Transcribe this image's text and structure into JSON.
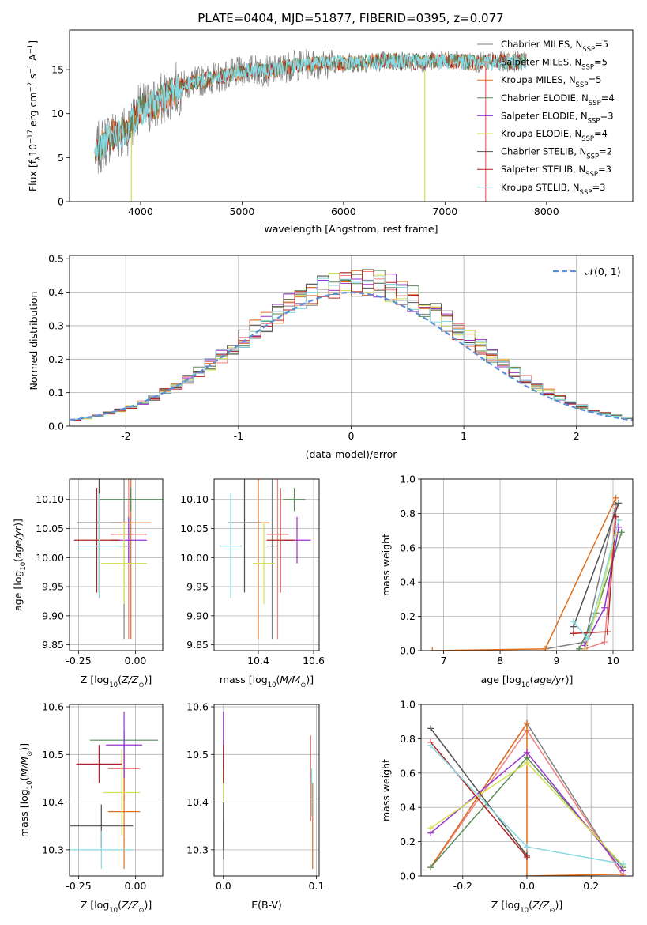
{
  "figure_title": "PLATE=0404, MJD=51877, FIBERID=0395, z=0.077",
  "colors": {
    "Chabrier MILES": "#808080",
    "Salpeter MILES": "#f08080",
    "Kroupa MILES": "#e07020",
    "Chabrier ELODIE": "#5a8a5a",
    "Salpeter ELODIE": "#9932cc",
    "Kroupa ELODIE": "#d4e157",
    "Chabrier STELIB": "#505050",
    "Salpeter STELIB": "#b22222",
    "Kroupa STELIB": "#87d8e0",
    "gaussian": "#5b8fd6"
  },
  "chart_data": [
    {
      "id": "spectrum",
      "type": "line",
      "title": "PLATE=0404, MJD=51877, FIBERID=0395, z=0.077",
      "xlabel": "wavelength [Angstrom, rest frame]",
      "ylabel": "Flux [f_λ 10^-17 erg cm^-2 s^-1 A^-1]",
      "xlim": [
        3300,
        8850
      ],
      "ylim": [
        0,
        19.5
      ],
      "xticks": [
        4000,
        5000,
        6000,
        7000,
        8000
      ],
      "yticks": [
        0,
        5,
        10,
        15
      ],
      "legend_placement": "right",
      "legend": [
        {
          "name": "Chabrier MILES",
          "nssp": 5
        },
        {
          "name": "Salpeter MILES",
          "nssp": 5
        },
        {
          "name": "Kroupa MILES",
          "nssp": 5
        },
        {
          "name": "Chabrier ELODIE",
          "nssp": 4
        },
        {
          "name": "Salpeter ELODIE",
          "nssp": 3
        },
        {
          "name": "Kroupa ELODIE",
          "nssp": 4
        },
        {
          "name": "Chabrier STELIB",
          "nssp": 2
        },
        {
          "name": "Salpeter STELIB",
          "nssp": 3
        },
        {
          "name": "Kroupa STELIB",
          "nssp": 3
        }
      ],
      "continuum": {
        "x": [
          3550,
          3700,
          3850,
          4000,
          4150,
          4300,
          4500,
          4700,
          4900,
          5100,
          5300,
          5500,
          5800,
          6100,
          6400,
          6700,
          7000,
          7300,
          7600,
          7800,
          8200,
          8600
        ],
        "y": [
          5.5,
          7.5,
          8.0,
          10.5,
          11.0,
          12.5,
          13.5,
          14.0,
          14.5,
          15.0,
          14.8,
          15.5,
          15.7,
          15.8,
          16.0,
          15.9,
          16.0,
          15.8,
          15.9,
          16.0,
          16.2,
          16.3
        ]
      }
    },
    {
      "id": "residuals",
      "type": "histogram",
      "xlabel": "(data-model)/error",
      "ylabel": "Normed distribution",
      "xlim": [
        -2.5,
        2.5
      ],
      "ylim": [
        0,
        0.51
      ],
      "xticks": [
        -2,
        -1,
        0,
        1,
        2
      ],
      "yticks": [
        0.0,
        0.1,
        0.2,
        0.3,
        0.4,
        0.5
      ],
      "grid": true,
      "legend": [
        "𝒩(0, 1)"
      ],
      "legend_placement": "top-right",
      "bin_width": 0.1,
      "reference_curve": "standard normal pdf"
    },
    {
      "id": "age-vs-Z",
      "type": "errorbar",
      "xlabel": "Z [log10(Z/Z⊙)]",
      "ylabel": "age [log10(age/yr)]",
      "xlim": [
        -0.29,
        0.12
      ],
      "ylim": [
        9.84,
        10.135
      ],
      "xticks": [
        -0.25,
        0.0
      ],
      "yticks": [
        9.85,
        9.9,
        9.95,
        10.0,
        10.05,
        10.1
      ],
      "grid": true,
      "points": [
        {
          "series": "Chabrier MILES",
          "x": -0.05,
          "y": 10.02,
          "xerr": 0.03,
          "yerr": 0.16
        },
        {
          "series": "Salpeter MILES",
          "x": -0.03,
          "y": 10.04,
          "xerr": 0.08,
          "yerr": 0.18
        },
        {
          "series": "Kroupa MILES",
          "x": -0.02,
          "y": 10.06,
          "xerr": 0.09,
          "yerr": 0.2
        },
        {
          "series": "Chabrier ELODIE",
          "x": -0.02,
          "y": 10.1,
          "xerr": 0.14,
          "yerr": 0.02
        },
        {
          "series": "Salpeter ELODIE",
          "x": -0.03,
          "y": 10.03,
          "xerr": 0.08,
          "yerr": 0.04
        },
        {
          "series": "Kroupa ELODIE",
          "x": -0.05,
          "y": 9.99,
          "xerr": 0.1,
          "yerr": 0.07
        },
        {
          "series": "Chabrier STELIB",
          "x": -0.16,
          "y": 10.06,
          "xerr": 0.1,
          "yerr": 0.12
        },
        {
          "series": "Salpeter STELIB",
          "x": -0.17,
          "y": 10.03,
          "xerr": 0.1,
          "yerr": 0.09
        },
        {
          "series": "Kroupa STELIB",
          "x": -0.16,
          "y": 10.02,
          "xerr": 0.1,
          "yerr": 0.09
        }
      ]
    },
    {
      "id": "age-vs-mass",
      "type": "errorbar",
      "xlabel": "mass [log10(M/M⊙)]",
      "xlim": [
        10.24,
        10.62
      ],
      "ylim": [
        9.84,
        10.135
      ],
      "xticks": [
        10.4,
        10.6
      ],
      "yticks": [
        9.85,
        9.9,
        9.95,
        10.0,
        10.05,
        10.1
      ],
      "grid": true,
      "points": [
        {
          "series": "Chabrier MILES",
          "x": 10.45,
          "y": 10.02,
          "xerr": 0.02,
          "yerr": 0.16
        },
        {
          "series": "Salpeter MILES",
          "x": 10.47,
          "y": 10.04,
          "xerr": 0.04,
          "yerr": 0.18
        },
        {
          "series": "Kroupa MILES",
          "x": 10.4,
          "y": 10.06,
          "xerr": 0.04,
          "yerr": 0.2
        },
        {
          "series": "Chabrier ELODIE",
          "x": 10.53,
          "y": 10.1,
          "xerr": 0.04,
          "yerr": 0.02
        },
        {
          "series": "Salpeter ELODIE",
          "x": 10.54,
          "y": 10.03,
          "xerr": 0.05,
          "yerr": 0.04
        },
        {
          "series": "Kroupa ELODIE",
          "x": 10.42,
          "y": 9.99,
          "xerr": 0.04,
          "yerr": 0.07
        },
        {
          "series": "Chabrier STELIB",
          "x": 10.35,
          "y": 10.06,
          "xerr": 0.06,
          "yerr": 0.12
        },
        {
          "series": "Salpeter STELIB",
          "x": 10.48,
          "y": 10.03,
          "xerr": 0.05,
          "yerr": 0.09
        },
        {
          "series": "Kroupa STELIB",
          "x": 10.3,
          "y": 10.02,
          "xerr": 0.04,
          "yerr": 0.09
        }
      ]
    },
    {
      "id": "weight-vs-age",
      "type": "line",
      "xlabel": "age [log10(age/yr)]",
      "ylabel": "mass weight",
      "xlim": [
        6.6,
        10.35
      ],
      "ylim": [
        0,
        1.0
      ],
      "xticks": [
        7,
        8,
        9,
        10
      ],
      "yticks": [
        0.0,
        0.2,
        0.4,
        0.6,
        0.8,
        1.0
      ],
      "grid": true,
      "series": [
        {
          "name": "Chabrier MILES",
          "x": [
            8.8,
            9.5,
            10.05
          ],
          "y": [
            0.01,
            0.05,
            0.85
          ]
        },
        {
          "name": "Salpeter MILES",
          "x": [
            9.5,
            9.85,
            10.05
          ],
          "y": [
            0.01,
            0.05,
            0.83
          ]
        },
        {
          "name": "Kroupa MILES",
          "x": [
            6.8,
            8.8,
            10.05
          ],
          "y": [
            0.0,
            0.01,
            0.89
          ]
        },
        {
          "name": "Chabrier ELODIE",
          "x": [
            9.4,
            9.7,
            10.15
          ],
          "y": [
            0.01,
            0.22,
            0.69
          ]
        },
        {
          "name": "Salpeter ELODIE",
          "x": [
            9.5,
            9.85,
            10.1
          ],
          "y": [
            0.03,
            0.25,
            0.72
          ]
        },
        {
          "name": "Kroupa ELODIE",
          "x": [
            9.5,
            9.75,
            10.05
          ],
          "y": [
            0.0,
            0.28,
            0.68
          ]
        },
        {
          "name": "Chabrier STELIB",
          "x": [
            9.3,
            10.1
          ],
          "y": [
            0.14,
            0.86
          ]
        },
        {
          "name": "Salpeter STELIB",
          "x": [
            9.3,
            9.9,
            10.05
          ],
          "y": [
            0.1,
            0.11,
            0.78
          ]
        },
        {
          "name": "Kroupa STELIB",
          "x": [
            9.3,
            9.55,
            10.1
          ],
          "y": [
            0.17,
            0.07,
            0.76
          ]
        }
      ]
    },
    {
      "id": "mass-vs-Z",
      "type": "errorbar",
      "xlabel": "Z [log10(Z/Z⊙)]",
      "ylabel": "mass [log10(M/M⊙)]",
      "xlim": [
        -0.29,
        0.12
      ],
      "ylim": [
        10.245,
        10.605
      ],
      "xticks": [
        -0.25,
        0.0
      ],
      "yticks": [
        10.3,
        10.4,
        10.5,
        10.6
      ],
      "grid": true,
      "points": [
        {
          "series": "Chabrier MILES",
          "x": -0.05,
          "y": 10.47,
          "xerr": 0.03,
          "yerr": 0.07
        },
        {
          "series": "Salpeter MILES",
          "x": -0.05,
          "y": 10.47,
          "xerr": 0.07,
          "yerr": 0.04
        },
        {
          "series": "Kroupa MILES",
          "x": -0.05,
          "y": 10.38,
          "xerr": 0.07,
          "yerr": 0.12
        },
        {
          "series": "Chabrier ELODIE",
          "x": -0.05,
          "y": 10.53,
          "xerr": 0.15,
          "yerr": 0.02
        },
        {
          "series": "Salpeter ELODIE",
          "x": -0.05,
          "y": 10.52,
          "xerr": 0.08,
          "yerr": 0.07
        },
        {
          "series": "Kroupa ELODIE",
          "x": -0.06,
          "y": 10.42,
          "xerr": 0.08,
          "yerr": 0.09
        },
        {
          "series": "Chabrier STELIB",
          "x": -0.15,
          "y": 10.35,
          "xerr": 0.14,
          "yerr": 0.045
        },
        {
          "series": "Salpeter STELIB",
          "x": -0.16,
          "y": 10.48,
          "xerr": 0.1,
          "yerr": 0.04
        },
        {
          "series": "Kroupa STELIB",
          "x": -0.15,
          "y": 10.3,
          "xerr": 0.14,
          "yerr": 0.04
        }
      ]
    },
    {
      "id": "mass-vs-EBV",
      "type": "errorbar",
      "xlabel": "E(B-V)",
      "xlim": [
        -0.01,
        0.103
      ],
      "ylim": [
        10.245,
        10.605
      ],
      "xticks": [
        0.0,
        0.1
      ],
      "yticks": [
        10.3,
        10.4,
        10.5,
        10.6
      ],
      "grid": true,
      "points": [
        {
          "series": "Chabrier MILES",
          "x": 0.0,
          "y": 10.32,
          "xerr": 0.0,
          "yerr": 0.04
        },
        {
          "series": "Salpeter MILES",
          "x": 0.094,
          "y": 10.45,
          "xerr": 0.0,
          "yerr": 0.09
        },
        {
          "series": "Kroupa MILES",
          "x": 0.096,
          "y": 10.35,
          "xerr": 0.0,
          "yerr": 0.09
        },
        {
          "series": "Chabrier ELODIE",
          "x": 0.0,
          "y": 10.46,
          "xerr": 0.0,
          "yerr": 0.05
        },
        {
          "series": "Salpeter ELODIE",
          "x": 0.0,
          "y": 10.52,
          "xerr": 0.0,
          "yerr": 0.07
        },
        {
          "series": "Kroupa ELODIE",
          "x": 0.0,
          "y": 10.43,
          "xerr": 0.0,
          "yerr": 0.04
        },
        {
          "series": "Chabrier STELIB",
          "x": 0.0,
          "y": 10.35,
          "xerr": 0.0,
          "yerr": 0.05
        },
        {
          "series": "Salpeter STELIB",
          "x": 0.0,
          "y": 10.48,
          "xerr": 0.0,
          "yerr": 0.04
        },
        {
          "series": "Kroupa STELIB",
          "x": 0.095,
          "y": 10.42,
          "xerr": 0.0,
          "yerr": 0.05
        }
      ]
    },
    {
      "id": "weight-vs-Z",
      "type": "line",
      "xlabel": "Z [log10(Z/Z⊙)]",
      "ylabel": "mass weight",
      "xlim": [
        -0.33,
        0.33
      ],
      "ylim": [
        0,
        1.0
      ],
      "xticks": [
        -0.2,
        0.0,
        0.2
      ],
      "yticks": [
        0.0,
        0.2,
        0.4,
        0.6,
        0.8,
        1.0
      ],
      "grid": true,
      "series": [
        {
          "name": "Chabrier MILES",
          "x": [
            -0.3,
            0.0,
            0.3
          ],
          "y": [
            0.05,
            0.89,
            0.0
          ]
        },
        {
          "name": "Salpeter MILES",
          "x": [
            -0.3,
            0.0,
            0.3
          ],
          "y": [
            0.05,
            0.85,
            0.0
          ]
        },
        {
          "name": "Kroupa MILES",
          "x": [
            -0.3,
            0.0,
            0.0,
            0.3
          ],
          "y": [
            0.05,
            0.89,
            0.0,
            0.01
          ]
        },
        {
          "name": "Chabrier ELODIE",
          "x": [
            -0.3,
            0.0,
            0.3
          ],
          "y": [
            0.05,
            0.69,
            0.05
          ]
        },
        {
          "name": "Salpeter ELODIE",
          "x": [
            -0.3,
            0.0,
            0.3
          ],
          "y": [
            0.25,
            0.72,
            0.03
          ]
        },
        {
          "name": "Kroupa ELODIE",
          "x": [
            -0.3,
            0.0,
            0.3
          ],
          "y": [
            0.28,
            0.66,
            0.06
          ]
        },
        {
          "name": "Chabrier STELIB",
          "x": [
            -0.3,
            0.0
          ],
          "y": [
            0.86,
            0.12
          ]
        },
        {
          "name": "Salpeter STELIB",
          "x": [
            -0.3,
            0.0
          ],
          "y": [
            0.78,
            0.11
          ]
        },
        {
          "name": "Kroupa STELIB",
          "x": [
            -0.3,
            0.0,
            0.3
          ],
          "y": [
            0.76,
            0.17,
            0.07
          ]
        }
      ]
    }
  ]
}
